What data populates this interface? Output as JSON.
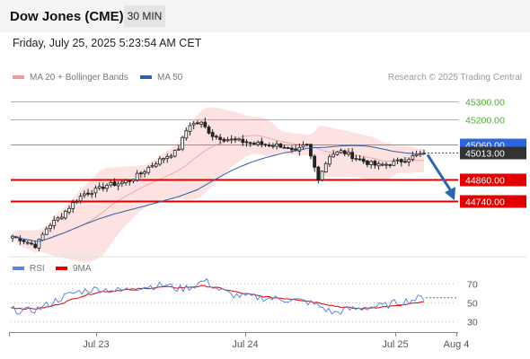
{
  "header": {
    "title": "Dow Jones (CME)",
    "timeframe": "30 MIN"
  },
  "date_line": "Friday, July 25, 2025 5:23:54 AM CET",
  "legend_top": {
    "bb_label": "MA 20 + Bollinger Bands",
    "ma50_label": "MA 50"
  },
  "legend_bottom": {
    "rsi_label": "RSI",
    "ma9_label": "9MA"
  },
  "credit": "Research © 2025 Trading Central",
  "colors": {
    "bb": "#ee9a98",
    "ma50": "#2f5fa6",
    "rsi": "#5a87dd",
    "ma9": "#e00000",
    "green": "#8ccf6a",
    "blue": "#6e91e8",
    "red": "#e00000",
    "arrow": "#2d65a8",
    "candle_up": "#ffffff",
    "candle_down": "#222222"
  },
  "chart_data": [
    {
      "type": "candlestick",
      "instrument": "Dow Jones (CME)",
      "timeframe": "30 MIN",
      "ylim": [
        44450,
        45390
      ],
      "x_ticks": [
        "Jul 23",
        "Jul 24",
        "Jul 25",
        "Aug 4"
      ],
      "levels": [
        {
          "value": 45300,
          "label": "45300.00",
          "kind": "resistance-green"
        },
        {
          "value": 45200,
          "label": "45200.00",
          "kind": "resistance-green"
        },
        {
          "value": 45060,
          "label": "45060.00",
          "kind": "pivot"
        },
        {
          "value": 45013,
          "label": "45013.00",
          "kind": "last-price"
        },
        {
          "value": 44860,
          "label": "44860.00",
          "kind": "support-red"
        },
        {
          "value": 44740,
          "label": "44740.00",
          "kind": "support-red"
        }
      ],
      "close_path": [
        44545,
        44520,
        44490,
        44600,
        44650,
        44720,
        44780,
        44800,
        44830,
        44840,
        44860,
        44900,
        44950,
        44990,
        45020,
        45170,
        45180,
        45110,
        45090,
        45080,
        45070,
        45060,
        45060,
        45050,
        45010,
        45060,
        44870,
        45000,
        45020,
        44990,
        44960,
        44940,
        44950,
        44965,
        44990,
        45010
      ],
      "forecast": {
        "from": 45010,
        "to": 44740,
        "direction": "down"
      }
    },
    {
      "type": "line",
      "title": "RSI",
      "series": [
        {
          "name": "RSI",
          "values": [
            42,
            40,
            42,
            48,
            55,
            60,
            63,
            64,
            62,
            63,
            66,
            67,
            68,
            64,
            66,
            73,
            64,
            58,
            56,
            55,
            54,
            53,
            52,
            50,
            45,
            38,
            42,
            43,
            45,
            46,
            50,
            52,
            55
          ]
        },
        {
          "name": "9MA",
          "values": [
            44,
            43,
            43,
            45,
            49,
            54,
            58,
            61,
            62,
            63,
            64,
            65,
            66,
            65,
            66,
            67,
            65,
            62,
            59,
            57,
            55,
            54,
            53,
            51,
            49,
            46,
            44,
            43,
            44,
            45,
            46,
            48,
            50
          ]
        }
      ],
      "ylim": [
        20,
        80
      ],
      "y_ticks": [
        70,
        50,
        30
      ]
    }
  ]
}
